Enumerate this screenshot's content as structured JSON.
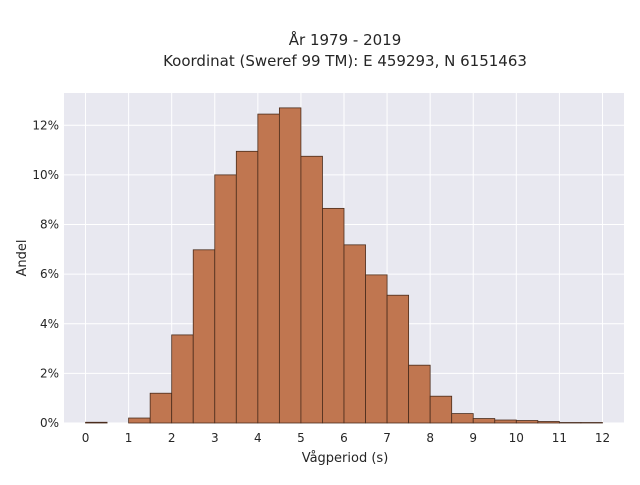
{
  "chart_data": {
    "type": "bar",
    "title": "År 1979 - 2019",
    "subtitle": "Koordinat (Sweref 99 TM): E 459293, N 6151463",
    "xlabel": "Vågperiod (s)",
    "ylabel": "Andel",
    "xlim": [
      -0.5,
      12.5
    ],
    "ylim": [
      0,
      13.3
    ],
    "bin_width": 0.5,
    "bin_starts": [
      0,
      0.5,
      1,
      1.5,
      2,
      2.5,
      3,
      3.5,
      4,
      4.5,
      5,
      5.5,
      6,
      6.5,
      7,
      7.5,
      8,
      8.5,
      9,
      9.5,
      10,
      10.5,
      11,
      11.5
    ],
    "values": [
      0.03,
      0.0,
      0.2,
      1.2,
      3.55,
      6.98,
      10.0,
      10.95,
      12.45,
      12.7,
      10.75,
      8.65,
      7.18,
      5.97,
      5.15,
      2.33,
      1.08,
      0.38,
      0.18,
      0.12,
      0.1,
      0.06,
      0.02,
      0.02
    ],
    "x_ticks": [
      0,
      1,
      2,
      3,
      4,
      5,
      6,
      7,
      8,
      9,
      10,
      11,
      12
    ],
    "x_tick_labels": [
      "0",
      "1",
      "2",
      "3",
      "4",
      "5",
      "6",
      "7",
      "8",
      "9",
      "10",
      "11",
      "12"
    ],
    "y_ticks": [
      0,
      2,
      4,
      6,
      8,
      10,
      12
    ],
    "y_tick_labels": [
      "0%",
      "2%",
      "4%",
      "6%",
      "8%",
      "10%",
      "12%"
    ],
    "grid": true,
    "colors": {
      "bar_fill": "#c07650",
      "bar_edge": "#4a2c1c",
      "plot_background": "#e8e8f0",
      "grid": "#ffffff",
      "text": "#262626"
    }
  }
}
